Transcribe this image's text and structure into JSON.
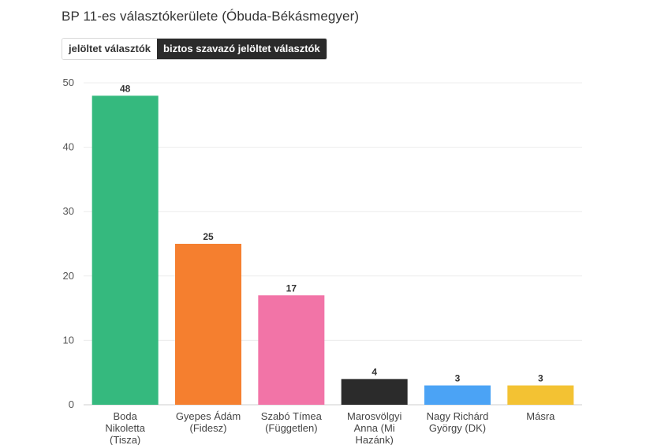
{
  "title": "BP 11-es választókerülete (Óbuda-Békásmegyer)",
  "toggle": {
    "options": [
      "jelöltet választók",
      "biztos szavazó jelöltet választók"
    ],
    "selected": 1
  },
  "chart_data": {
    "type": "bar",
    "title": "BP 11-es választókerülete (Óbuda-Békásmegyer)",
    "categories": [
      [
        "Boda",
        "Nikoletta",
        "(Tisza)"
      ],
      [
        "Gyepes Ádám",
        "(Fidesz)"
      ],
      [
        "Szabó Tímea",
        "(Független)"
      ],
      [
        "Marosvölgyi",
        "Anna (Mi",
        "Hazánk)"
      ],
      [
        "Nagy Richárd",
        "György (DK)"
      ],
      [
        "Másra"
      ]
    ],
    "values": [
      48,
      25,
      17,
      4,
      3,
      3
    ],
    "colors": [
      "#35b97e",
      "#f57f2f",
      "#f274a7",
      "#2b2b2b",
      "#4ba3f5",
      "#f3c233"
    ],
    "yticks": [
      0,
      10,
      20,
      30,
      40,
      50
    ],
    "ylim": [
      0,
      50
    ],
    "xlabel": "",
    "ylabel": "",
    "grid": true
  }
}
